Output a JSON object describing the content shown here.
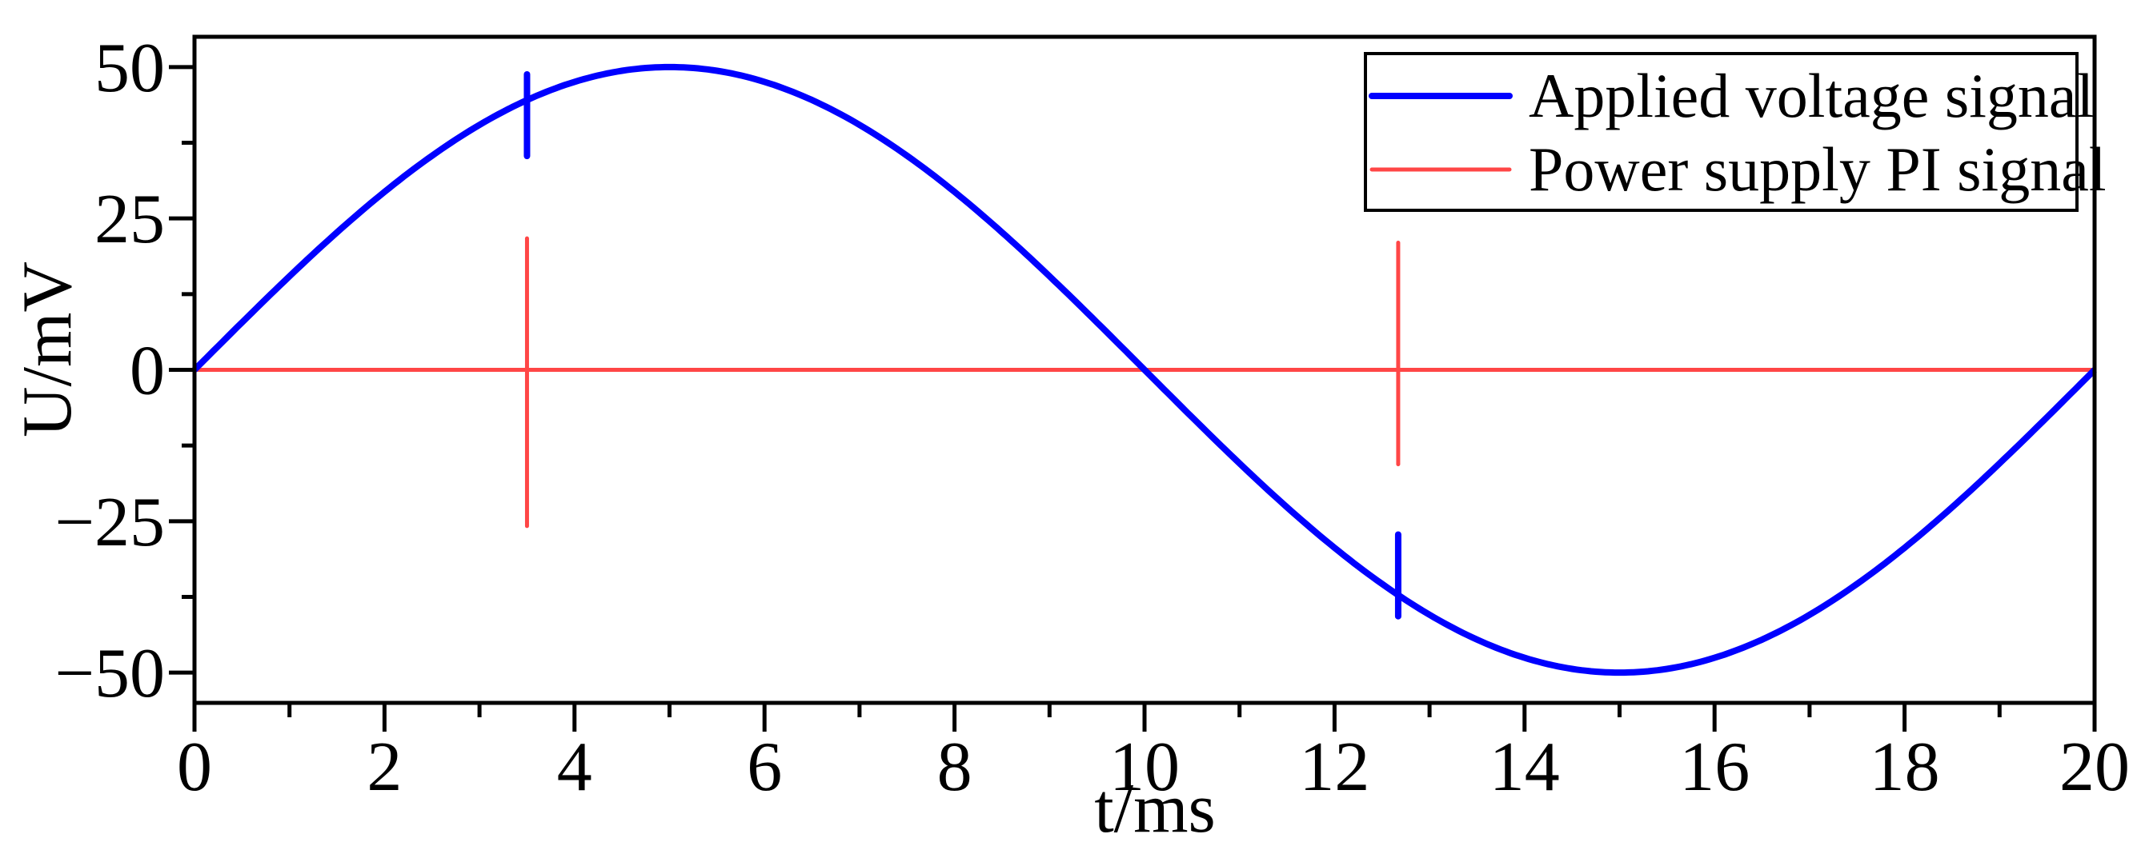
{
  "chart_data": {
    "type": "line",
    "title": "",
    "xlabel": "t/ms",
    "ylabel": "U/mV",
    "xlim": [
      0,
      20
    ],
    "ylim": [
      -55,
      55
    ],
    "x_major_ticks": [
      0,
      2,
      4,
      6,
      8,
      10,
      12,
      14,
      16,
      18,
      20
    ],
    "x_minor_ticks": [
      1,
      3,
      5,
      7,
      9,
      11,
      13,
      15,
      17,
      19
    ],
    "x_tick_labels": [
      "0",
      "2",
      "4",
      "6",
      "8",
      "10",
      "12",
      "14",
      "16",
      "18",
      "20"
    ],
    "y_major_ticks": [
      50,
      25,
      0,
      -25,
      -50
    ],
    "y_minor_ticks": [
      37.5,
      12.5,
      -12.5,
      -37.5
    ],
    "y_tick_labels": [
      "50",
      "25",
      "0",
      "−25",
      "−50"
    ],
    "grid": false,
    "legend_position": "upper right",
    "series": [
      {
        "name": "Applied voltage signal",
        "color": "#0000ff",
        "description": "sinusoid 50*sin(2*pi*t/20), amplitude 50 mV, period 20 ms",
        "amplitude": 50,
        "period_ms": 20,
        "x": [
          0,
          1,
          2,
          3,
          3.5,
          4,
          5,
          6,
          7,
          8,
          9,
          10,
          11,
          12,
          12.67,
          13,
          14,
          15,
          16,
          17,
          18,
          19,
          20
        ],
        "values": [
          0,
          15.5,
          29.4,
          40.5,
          44.5,
          47.6,
          50,
          47.6,
          40.5,
          29.4,
          15.5,
          0,
          -15.5,
          -29.4,
          -37.3,
          -40.5,
          -47.6,
          -50,
          -47.6,
          -40.5,
          -29.4,
          -15.5,
          0
        ],
        "spikes": [
          {
            "t": 3.5,
            "from": 35.3,
            "to": 48.8
          },
          {
            "t": 12.67,
            "from": -40.7,
            "to": -27.2
          }
        ]
      },
      {
        "name": "Power supply PI signal",
        "color": "#ff4646",
        "description": "flat at 0 mV with switching spikes",
        "x": [
          0,
          20
        ],
        "values": [
          0,
          0
        ],
        "spikes": [
          {
            "t": 3.5,
            "from": -25.8,
            "to": 21.7
          },
          {
            "t": 12.67,
            "from": -15.6,
            "to": 21.0
          }
        ]
      }
    ]
  }
}
